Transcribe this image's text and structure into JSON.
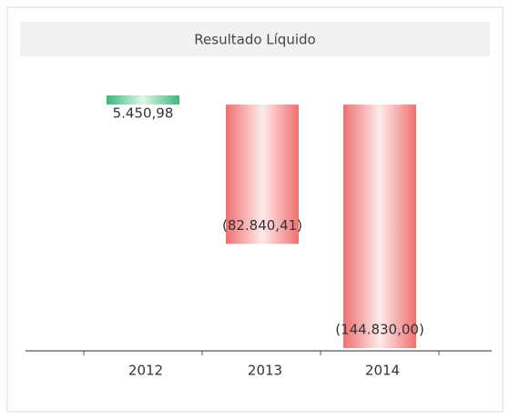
{
  "chart_data": {
    "type": "bar",
    "title": "Resultado Líquido",
    "categories": [
      "2012",
      "2013",
      "2014"
    ],
    "values": [
      5450.98,
      -82840.41,
      -144830.0
    ],
    "value_labels": [
      "5.450,98",
      "(82.840,41)",
      "(144.830,00)"
    ],
    "positive_color": "#3cb878",
    "negative_color": "#f07070"
  }
}
